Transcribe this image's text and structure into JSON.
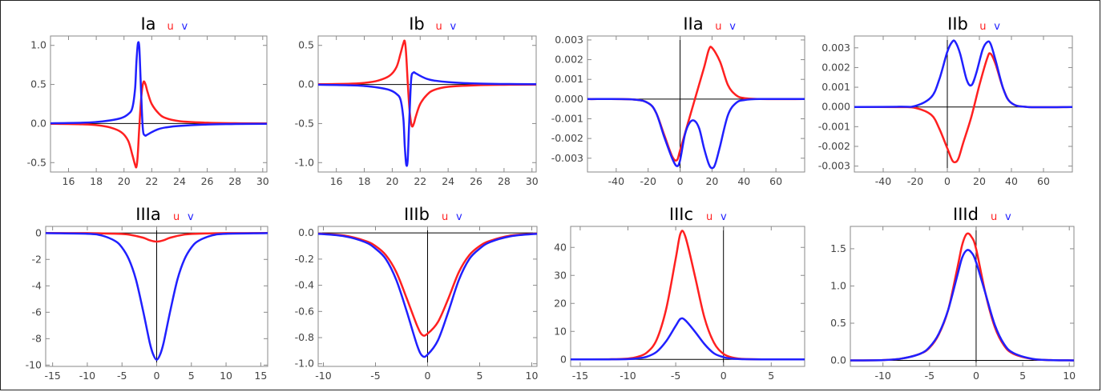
{
  "colors": {
    "u": "#ff2020",
    "v": "#2020ff",
    "frame": "#8a8a8a",
    "axis": "#000000",
    "text": "#444444"
  },
  "chart_data": [
    {
      "type": "line",
      "title": "Ia",
      "legend": [
        "u",
        "v"
      ],
      "xlim": [
        14.7,
        30.3
      ],
      "ylim": [
        -0.62,
        1.12
      ],
      "xticks": [
        16,
        18,
        20,
        22,
        24,
        26,
        28,
        30
      ],
      "xtick_labels": [
        "16",
        "18",
        "20",
        "22",
        "24",
        "26",
        "28",
        "30"
      ],
      "yticks": [
        -0.5,
        0,
        0.5,
        1.0
      ],
      "ytick_labels": [
        "-0.5",
        "0.0",
        "0.5",
        "1.0"
      ],
      "series": [
        {
          "name": "u",
          "x": [
            14.7,
            17,
            18,
            19,
            19.8,
            20.3,
            20.6,
            20.8,
            20.9,
            21.0,
            21.1,
            21.25,
            21.4,
            21.55,
            21.7,
            22,
            22.5,
            23,
            24,
            26,
            28,
            30.3
          ],
          "y": [
            -0.003,
            -0.01,
            -0.02,
            -0.05,
            -0.11,
            -0.22,
            -0.4,
            -0.53,
            -0.55,
            -0.38,
            -0.05,
            0.35,
            0.53,
            0.5,
            0.4,
            0.25,
            0.13,
            0.07,
            0.03,
            0.01,
            0.004,
            0.002
          ]
        },
        {
          "name": "v",
          "x": [
            14.7,
            17,
            18,
            19,
            19.8,
            20.3,
            20.6,
            20.8,
            20.9,
            21.0,
            21.1,
            21.2,
            21.35,
            21.5,
            21.7,
            22,
            22.5,
            23,
            24,
            26,
            28,
            30.3
          ],
          "y": [
            0.003,
            0.01,
            0.02,
            0.04,
            0.07,
            0.12,
            0.2,
            0.45,
            0.8,
            1.02,
            0.98,
            0.55,
            -0.05,
            -0.15,
            -0.14,
            -0.11,
            -0.07,
            -0.05,
            -0.03,
            -0.012,
            -0.006,
            -0.003
          ]
        }
      ]
    },
    {
      "type": "line",
      "title": "Ib",
      "legend": [
        "u",
        "v"
      ],
      "xlim": [
        14.7,
        30.3
      ],
      "ylim": [
        -1.12,
        0.62
      ],
      "xticks": [
        16,
        18,
        20,
        22,
        24,
        26,
        28,
        30
      ],
      "xtick_labels": [
        "16",
        "18",
        "20",
        "22",
        "24",
        "26",
        "28",
        "30"
      ],
      "yticks": [
        -1.0,
        -0.5,
        0,
        0.5
      ],
      "ytick_labels": [
        "-1.0",
        "-0.5",
        "0.0",
        "0.5"
      ],
      "series": [
        {
          "name": "u",
          "x": [
            14.7,
            17,
            18,
            19,
            19.8,
            20.3,
            20.6,
            20.8,
            20.9,
            21.0,
            21.1,
            21.25,
            21.4,
            21.55,
            21.7,
            22,
            22.5,
            23,
            24,
            26,
            28,
            30.3
          ],
          "y": [
            0.003,
            0.01,
            0.02,
            0.05,
            0.11,
            0.22,
            0.4,
            0.53,
            0.55,
            0.38,
            0.05,
            -0.35,
            -0.53,
            -0.5,
            -0.4,
            -0.25,
            -0.13,
            -0.07,
            -0.03,
            -0.01,
            -0.004,
            -0.002
          ]
        },
        {
          "name": "v",
          "x": [
            14.7,
            17,
            18,
            19,
            19.8,
            20.3,
            20.6,
            20.8,
            20.9,
            21.0,
            21.1,
            21.2,
            21.35,
            21.5,
            21.7,
            22,
            22.5,
            23,
            24,
            26,
            28,
            30.3
          ],
          "y": [
            -0.003,
            -0.01,
            -0.02,
            -0.04,
            -0.07,
            -0.12,
            -0.2,
            -0.45,
            -0.8,
            -1.02,
            -0.98,
            -0.55,
            0.05,
            0.15,
            0.14,
            0.11,
            0.07,
            0.05,
            0.03,
            0.012,
            0.006,
            0.003
          ]
        }
      ]
    },
    {
      "type": "line",
      "title": "IIa",
      "legend": [
        "u",
        "v"
      ],
      "xlim": [
        -58,
        78
      ],
      "ylim": [
        -0.0037,
        0.0032
      ],
      "xticks": [
        -40,
        -20,
        0,
        20,
        40,
        60
      ],
      "xtick_labels": [
        "-40",
        "-20",
        "0",
        "20",
        "40",
        "60"
      ],
      "yticks": [
        -0.003,
        -0.002,
        -0.001,
        0,
        0.001,
        0.002,
        0.003
      ],
      "ytick_labels": [
        "-0.003",
        "-0.002",
        "-0.001",
        "0.000",
        "0.001",
        "0.002",
        "0.003"
      ],
      "series": [
        {
          "name": "u",
          "x": [
            -58,
            -30,
            -20,
            -15,
            -10,
            -5,
            -2,
            0,
            5,
            10,
            15,
            18,
            20,
            25,
            30,
            35,
            40,
            50,
            78
          ],
          "y": [
            0,
            -2e-05,
            -0.0002,
            -0.0007,
            -0.0018,
            -0.0029,
            -0.0031,
            -0.0026,
            -0.0012,
            0.0002,
            0.0016,
            0.0025,
            0.0026,
            0.0019,
            0.0007,
            0.0002,
            5e-05,
            0,
            0
          ]
        },
        {
          "name": "v",
          "x": [
            -58,
            -30,
            -20,
            -15,
            -10,
            -5,
            -2,
            0,
            3,
            6,
            9,
            12,
            15,
            18,
            20,
            22,
            25,
            30,
            35,
            40,
            50,
            78
          ],
          "y": [
            0,
            -2e-05,
            -0.0002,
            -0.0007,
            -0.0019,
            -0.003,
            -0.0034,
            -0.0031,
            -0.0018,
            -0.0012,
            -0.0011,
            -0.0015,
            -0.0025,
            -0.0033,
            -0.0035,
            -0.0033,
            -0.0024,
            -0.0008,
            -0.0002,
            -5e-05,
            0,
            0
          ]
        }
      ]
    },
    {
      "type": "line",
      "title": "IIb",
      "legend": [
        "u",
        "v"
      ],
      "xlim": [
        -58,
        78
      ],
      "ylim": [
        -0.0033,
        0.0036
      ],
      "xticks": [
        -40,
        -20,
        0,
        20,
        40,
        60
      ],
      "xtick_labels": [
        "-40",
        "-20",
        "0",
        "20",
        "40",
        "60"
      ],
      "yticks": [
        -0.003,
        -0.002,
        -0.001,
        0,
        0.001,
        0.002,
        0.003
      ],
      "ytick_labels": [
        "-0.003",
        "-0.002",
        "-0.001",
        "0.000",
        "0.001",
        "0.002",
        "0.003"
      ],
      "series": [
        {
          "name": "u",
          "x": [
            -58,
            -30,
            -20,
            -10,
            -5,
            0,
            3,
            5,
            7,
            10,
            15,
            20,
            25,
            27,
            30,
            35,
            40,
            50,
            78
          ],
          "y": [
            0,
            -1e-05,
            -5e-05,
            -0.0004,
            -0.0011,
            -0.0021,
            -0.0027,
            -0.0028,
            -0.0026,
            -0.0018,
            -0.0005,
            0.0011,
            0.0025,
            0.0027,
            0.0022,
            0.0009,
            0.0002,
            0,
            0
          ]
        },
        {
          "name": "v",
          "x": [
            -58,
            -30,
            -20,
            -10,
            -5,
            0,
            3,
            5,
            8,
            12,
            15,
            18,
            22,
            25,
            27,
            30,
            35,
            40,
            50,
            78
          ],
          "y": [
            0,
            1e-05,
            5e-05,
            0.0005,
            0.0014,
            0.0028,
            0.0033,
            0.0033,
            0.0027,
            0.0014,
            0.0011,
            0.0017,
            0.0029,
            0.0033,
            0.0032,
            0.0024,
            0.0009,
            0.0002,
            0,
            0
          ]
        }
      ]
    },
    {
      "type": "line",
      "title": "IIIa",
      "legend": [
        "u",
        "v"
      ],
      "xlim": [
        -16,
        16
      ],
      "ylim": [
        -10.1,
        0.5
      ],
      "xticks": [
        -15,
        -10,
        -5,
        0,
        5,
        10,
        15
      ],
      "xtick_labels": [
        "-15",
        "-10",
        "-5",
        "0",
        "5",
        "10",
        "15"
      ],
      "yticks": [
        -10,
        -8,
        -6,
        -4,
        -2,
        0
      ],
      "ytick_labels": [
        "-10",
        "-8",
        "-6",
        "-4",
        "-2",
        "0"
      ],
      "series": [
        {
          "name": "u",
          "x": [
            -16,
            -10,
            -6,
            -4,
            -2,
            -1,
            0,
            1,
            2,
            4,
            6,
            10,
            16
          ],
          "y": [
            0,
            -0.01,
            -0.05,
            -0.12,
            -0.35,
            -0.55,
            -0.65,
            -0.55,
            -0.35,
            -0.12,
            -0.05,
            -0.01,
            0
          ]
        },
        {
          "name": "v",
          "x": [
            -16,
            -10,
            -8,
            -6,
            -5,
            -4,
            -3,
            -2,
            -1,
            -0.5,
            0,
            0.5,
            1,
            2,
            3,
            4,
            5,
            6,
            8,
            10,
            16
          ],
          "y": [
            -0.01,
            -0.06,
            -0.18,
            -0.6,
            -1.1,
            -2.0,
            -3.5,
            -5.8,
            -8.3,
            -9.2,
            -9.6,
            -9.2,
            -8.3,
            -5.8,
            -3.5,
            -2.0,
            -1.1,
            -0.6,
            -0.18,
            -0.06,
            -0.01
          ]
        }
      ]
    },
    {
      "type": "line",
      "title": "IIIb",
      "legend": [
        "u",
        "v"
      ],
      "xlim": [
        -10.5,
        10.5
      ],
      "ylim": [
        -1.02,
        0.05
      ],
      "xticks": [
        -10,
        -5,
        0,
        5,
        10
      ],
      "xtick_labels": [
        "-10",
        "-5",
        "0",
        "5",
        "10"
      ],
      "yticks": [
        -1.0,
        -0.8,
        -0.6,
        -0.4,
        -0.2,
        0
      ],
      "ytick_labels": [
        "-1.0",
        "-0.8",
        "-0.6",
        "-0.4",
        "-0.2",
        "0.0"
      ],
      "series": [
        {
          "name": "u",
          "x": [
            -10.5,
            -8,
            -6,
            -5,
            -4,
            -3,
            -2,
            -1,
            -0.5,
            0,
            1,
            2,
            3,
            4,
            5,
            6,
            8,
            10.5
          ],
          "y": [
            -0.005,
            -0.02,
            -0.06,
            -0.1,
            -0.17,
            -0.3,
            -0.5,
            -0.71,
            -0.78,
            -0.77,
            -0.68,
            -0.5,
            -0.3,
            -0.17,
            -0.1,
            -0.06,
            -0.02,
            -0.005
          ]
        },
        {
          "name": "v",
          "x": [
            -10.5,
            -8,
            -6,
            -5,
            -4,
            -3,
            -2,
            -1,
            -0.5,
            0,
            1,
            2,
            3,
            4,
            5,
            6,
            8,
            10.5
          ],
          "y": [
            -0.006,
            -0.025,
            -0.07,
            -0.12,
            -0.2,
            -0.36,
            -0.6,
            -0.86,
            -0.94,
            -0.93,
            -0.82,
            -0.6,
            -0.36,
            -0.2,
            -0.12,
            -0.07,
            -0.025,
            -0.006
          ]
        }
      ]
    },
    {
      "type": "line",
      "title": "IIIc",
      "legend": [
        "u",
        "v"
      ],
      "xlim": [
        -16,
        8.5
      ],
      "ylim": [
        -2.5,
        47.5
      ],
      "xticks": [
        -15,
        -10,
        -5,
        0,
        5
      ],
      "xtick_labels": [
        "-15",
        "-10",
        "-5",
        "0",
        "5"
      ],
      "yticks": [
        0,
        10,
        20,
        30,
        40
      ],
      "ytick_labels": [
        "0",
        "10",
        "20",
        "30",
        "40"
      ],
      "series": [
        {
          "name": "u",
          "x": [
            -16,
            -12,
            -10,
            -9,
            -8,
            -7,
            -6,
            -5,
            -4.5,
            -4,
            -3,
            -2,
            -1,
            0,
            1,
            2,
            4,
            8.5
          ],
          "y": [
            0,
            0.05,
            0.3,
            0.9,
            2.5,
            7,
            18,
            36,
            45,
            44,
            30,
            15,
            6,
            2,
            0.6,
            0.2,
            0.02,
            0
          ]
        },
        {
          "name": "v",
          "x": [
            -16,
            -12,
            -10,
            -9,
            -8,
            -7,
            -6,
            -5,
            -4.5,
            -4,
            -3,
            -2,
            -1,
            0,
            1,
            2,
            4,
            8.5
          ],
          "y": [
            0,
            0.02,
            0.1,
            0.35,
            1,
            2.7,
            6.5,
            12,
            14.5,
            14,
            10,
            5.5,
            2.2,
            0.8,
            0.25,
            0.08,
            0.01,
            0
          ]
        }
      ]
    },
    {
      "type": "line",
      "title": "IIId",
      "legend": [
        "u",
        "v"
      ],
      "xlim": [
        -13.5,
        10.5
      ],
      "ylim": [
        -0.08,
        1.8
      ],
      "xticks": [
        -10,
        -5,
        0,
        5,
        10
      ],
      "xtick_labels": [
        "-10",
        "-5",
        "0",
        "5",
        "10"
      ],
      "yticks": [
        0,
        0.5,
        1.0,
        1.5
      ],
      "ytick_labels": [
        "0.0",
        "0.5",
        "1.0",
        "1.5"
      ],
      "series": [
        {
          "name": "u",
          "x": [
            -13.5,
            -10,
            -8,
            -6,
            -5,
            -4,
            -3,
            -2,
            -1.5,
            -1,
            -0.5,
            0,
            1,
            2,
            3,
            4,
            6,
            8,
            10.5
          ],
          "y": [
            0.001,
            0.005,
            0.025,
            0.09,
            0.17,
            0.35,
            0.68,
            1.25,
            1.55,
            1.7,
            1.66,
            1.5,
            0.9,
            0.45,
            0.2,
            0.09,
            0.02,
            0.005,
            0.001
          ]
        },
        {
          "name": "v",
          "x": [
            -13.5,
            -10,
            -8,
            -6,
            -5,
            -4,
            -3,
            -2,
            -1.5,
            -1,
            -0.5,
            0,
            1,
            2,
            3,
            4,
            6,
            8,
            10.5
          ],
          "y": [
            0.001,
            0.005,
            0.025,
            0.09,
            0.18,
            0.36,
            0.68,
            1.15,
            1.38,
            1.48,
            1.45,
            1.32,
            0.9,
            0.48,
            0.22,
            0.1,
            0.022,
            0.005,
            0.001
          ]
        }
      ]
    }
  ]
}
